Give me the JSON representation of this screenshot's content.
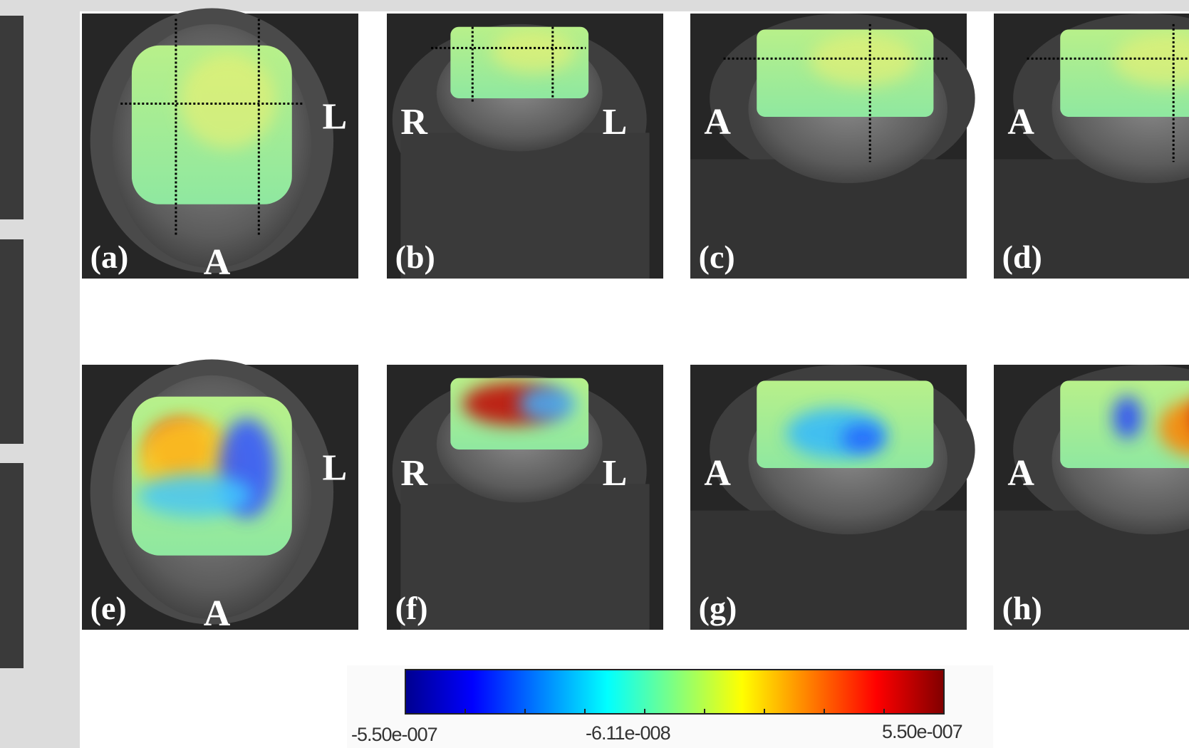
{
  "panels": [
    {
      "label": "(a)",
      "marks": [
        "L",
        "A"
      ]
    },
    {
      "label": "(b)",
      "marks": [
        "R",
        "L"
      ]
    },
    {
      "label": "(c)",
      "marks": [
        "A"
      ]
    },
    {
      "label": "(d)",
      "marks": [
        "A"
      ]
    },
    {
      "label": "(e)",
      "marks": [
        "L",
        "A"
      ]
    },
    {
      "label": "(f)",
      "marks": [
        "R",
        "L"
      ]
    },
    {
      "label": "(g)",
      "marks": [
        "A"
      ]
    },
    {
      "label": "(h)",
      "marks": [
        "A"
      ]
    }
  ],
  "colorbar": {
    "labels": [
      "-5.50e-007",
      "-6.11e-008",
      "5.50e-007"
    ]
  }
}
